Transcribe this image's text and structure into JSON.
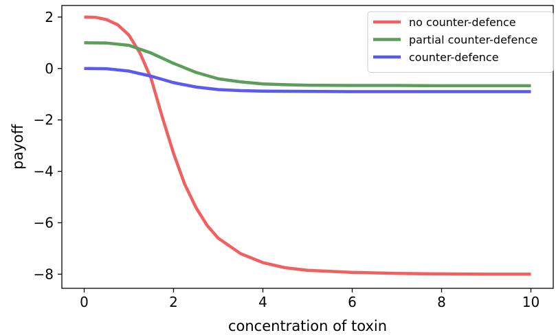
{
  "chart_data": {
    "type": "line",
    "title": "",
    "xlabel": "concentration of toxin",
    "ylabel": "payoff",
    "xlim": [
      -0.5,
      10.5
    ],
    "ylim": [
      -8.55,
      2.45
    ],
    "xticks": [
      0,
      2,
      4,
      6,
      8,
      10
    ],
    "yticks": [
      2,
      0,
      -2,
      -4,
      -6,
      -8
    ],
    "xtick_labels": [
      "0",
      "2",
      "4",
      "6",
      "8",
      "10"
    ],
    "ytick_labels": [
      "2",
      "0",
      "−2",
      "−4",
      "−6",
      "−8"
    ],
    "grid": false,
    "legend_position": "top-right",
    "series": [
      {
        "name": "no counter-defence",
        "color": "#f0605f",
        "x": [
          0,
          0.25,
          0.5,
          0.75,
          1.0,
          1.25,
          1.5,
          1.75,
          2.0,
          2.25,
          2.5,
          2.75,
          3.0,
          3.5,
          4.0,
          4.5,
          5.0,
          6.0,
          7.0,
          8.0,
          9.0,
          10.0
        ],
        "y": [
          2.0,
          1.99,
          1.9,
          1.7,
          1.3,
          0.6,
          -0.4,
          -1.9,
          -3.3,
          -4.5,
          -5.4,
          -6.1,
          -6.6,
          -7.2,
          -7.55,
          -7.75,
          -7.85,
          -7.93,
          -7.97,
          -7.99,
          -8.0,
          -8.0
        ]
      },
      {
        "name": "partial counter-defence",
        "color": "#5a9e5a",
        "x": [
          0,
          0.5,
          1.0,
          1.5,
          2.0,
          2.5,
          3.0,
          3.5,
          4.0,
          4.5,
          5.0,
          6.0,
          7.0,
          8.0,
          9.0,
          10.0
        ],
        "y": [
          1.0,
          0.99,
          0.9,
          0.6,
          0.2,
          -0.15,
          -0.4,
          -0.52,
          -0.6,
          -0.63,
          -0.65,
          -0.66,
          -0.66,
          -0.67,
          -0.67,
          -0.67
        ]
      },
      {
        "name": "counter-defence",
        "color": "#5a5af2",
        "x": [
          0,
          0.5,
          1.0,
          1.5,
          2.0,
          2.5,
          3.0,
          3.5,
          4.0,
          5.0,
          6.0,
          7.0,
          8.0,
          9.0,
          10.0
        ],
        "y": [
          0.0,
          -0.01,
          -0.1,
          -0.3,
          -0.55,
          -0.72,
          -0.82,
          -0.86,
          -0.88,
          -0.89,
          -0.9,
          -0.9,
          -0.9,
          -0.9,
          -0.9
        ]
      }
    ]
  }
}
